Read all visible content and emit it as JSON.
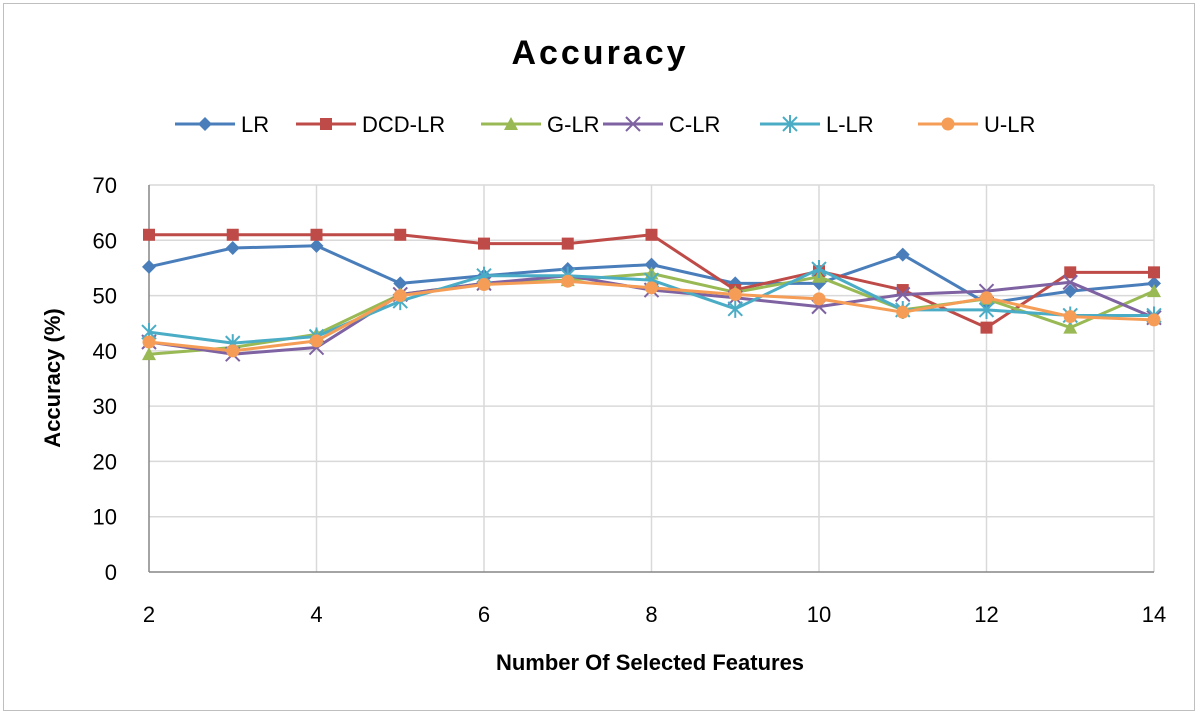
{
  "chart_data": {
    "type": "line",
    "title": "Accuracy",
    "xlabel": "Number Of Selected Features",
    "ylabel": "Accuracy (%)",
    "xlim": [
      2,
      14
    ],
    "ylim": [
      0,
      70
    ],
    "xticks": [
      2,
      4,
      6,
      8,
      10,
      12,
      14
    ],
    "yticks": [
      0,
      10,
      20,
      30,
      40,
      50,
      60,
      70
    ],
    "grid": true,
    "legend_position": "top",
    "x": [
      2,
      3,
      4,
      5,
      6,
      7,
      8,
      9,
      10,
      11,
      12,
      13,
      14
    ],
    "series": [
      {
        "name": "LR",
        "color": "#4a7ebb",
        "marker": "diamond",
        "values": [
          55.2,
          58.6,
          59.0,
          52.2,
          53.6,
          54.8,
          55.6,
          52.2,
          52.2,
          57.4,
          48.6,
          50.8,
          52.2
        ]
      },
      {
        "name": "DCD-LR",
        "color": "#be4b48",
        "marker": "square",
        "values": [
          61.0,
          61.0,
          61.0,
          61.0,
          59.4,
          59.4,
          61.0,
          51.0,
          54.4,
          51.0,
          44.2,
          54.2,
          54.2
        ]
      },
      {
        "name": "G-LR",
        "color": "#98b954",
        "marker": "triangle",
        "values": [
          39.4,
          40.6,
          43.0,
          50.2,
          52.2,
          52.8,
          54.0,
          50.6,
          53.4,
          47.4,
          49.4,
          44.2,
          50.8
        ]
      },
      {
        "name": "C-LR",
        "color": "#7e62a1",
        "marker": "x",
        "values": [
          41.6,
          39.4,
          40.6,
          50.2,
          52.2,
          53.6,
          51.0,
          49.6,
          48.0,
          50.2,
          50.8,
          52.4,
          46.0
        ]
      },
      {
        "name": "L-LR",
        "color": "#4bacc6",
        "marker": "star",
        "values": [
          43.4,
          41.4,
          42.6,
          49.0,
          53.6,
          53.6,
          52.8,
          47.6,
          54.8,
          47.4,
          47.4,
          46.4,
          46.4
        ]
      },
      {
        "name": "U-LR",
        "color": "#f59d56",
        "marker": "circle",
        "values": [
          41.6,
          40.0,
          41.8,
          50.0,
          52.0,
          52.6,
          51.4,
          50.2,
          49.4,
          47.0,
          49.6,
          46.2,
          45.6
        ]
      }
    ]
  }
}
